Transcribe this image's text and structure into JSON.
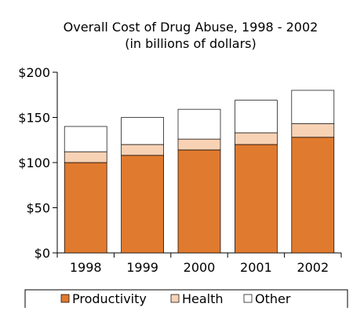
{
  "chart_data": {
    "type": "bar",
    "stacked": true,
    "title": "Overall Cost of Drug Abuse,  1998 - 2002",
    "subtitle": "(in billions of dollars)",
    "categories": [
      "1998",
      "1999",
      "2000",
      "2001",
      "2002"
    ],
    "series": [
      {
        "name": "Productivity",
        "values": [
          100,
          108,
          114,
          120,
          128
        ],
        "color": "#e07a2f"
      },
      {
        "name": "Health",
        "values": [
          12,
          12,
          12,
          13,
          15
        ],
        "color": "#f8d2b4"
      },
      {
        "name": "Other",
        "values": [
          28,
          30,
          33,
          36,
          37
        ],
        "color": "#ffffff"
      }
    ],
    "ylim": [
      0,
      200
    ],
    "yticks": [
      0,
      50,
      100,
      150,
      200
    ],
    "ytick_labels": [
      "$0",
      "$50",
      "$100",
      "$150",
      "$200"
    ],
    "grid": false,
    "legend_position": "bottom",
    "axis_color": "#000000",
    "bar_edge_color": "#000000"
  }
}
